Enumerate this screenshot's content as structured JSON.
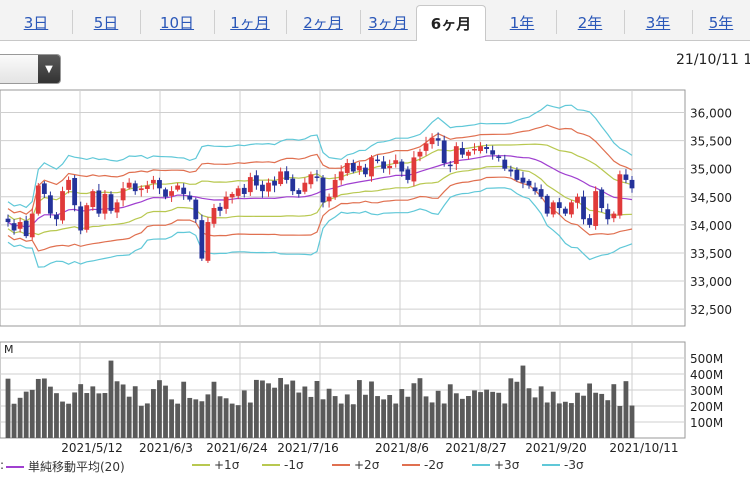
{
  "tabs": [
    {
      "label": "3日"
    },
    {
      "label": "5日"
    },
    {
      "label": "10日"
    },
    {
      "label": "1ヶ月"
    },
    {
      "label": "2ヶ月"
    },
    {
      "label": "3ヶ月"
    },
    {
      "label": "6ヶ月",
      "active": true
    },
    {
      "label": "1年"
    },
    {
      "label": "2年"
    },
    {
      "label": "3年"
    },
    {
      "label": "5年"
    }
  ],
  "header": {
    "date_label": "21/10/11 1"
  },
  "legend": {
    "prefix": ":",
    "items": [
      {
        "label": "単純移動平均(20)",
        "color": "#a040d0"
      },
      {
        "label": "+1σ",
        "color": "#b8c850"
      },
      {
        "label": "-1σ",
        "color": "#b8c850"
      },
      {
        "label": "+2σ",
        "color": "#e07050"
      },
      {
        "label": "-2σ",
        "color": "#e07050"
      },
      {
        "label": "+3σ",
        "color": "#60c8d8"
      },
      {
        "label": "-3σ",
        "color": "#60c8d8"
      }
    ]
  },
  "chart_data": {
    "type": "candlestick",
    "price_axis": {
      "ticks": [
        "36,000",
        "35,500",
        "35,000",
        "34,500",
        "34,000",
        "33,500",
        "33,000",
        "32,500"
      ],
      "range": [
        32200,
        36400
      ]
    },
    "volume_axis": {
      "unit_label": "M",
      "ticks": [
        "500M",
        "400M",
        "300M",
        "200M",
        "100M"
      ],
      "range": [
        0,
        600
      ]
    },
    "x_labels": [
      "2021/5/12",
      "2021/6/3",
      "2021/6/24",
      "2021/7/16",
      "2021/8/6",
      "2021/8/27",
      "2021/9/20",
      "2021/10/11"
    ],
    "colors": {
      "up": "#e03a3a",
      "down": "#24329a",
      "volume": "#5a5a5a"
    },
    "close": [
      34050,
      33900,
      34050,
      33800,
      34200,
      34700,
      34550,
      34200,
      34100,
      34600,
      34800,
      34350,
      33900,
      34350,
      34600,
      34200,
      34550,
      34250,
      34400,
      34650,
      34750,
      34600,
      34650,
      34700,
      34800,
      34650,
      34500,
      34600,
      34700,
      34550,
      34450,
      34100,
      33400,
      34050,
      34300,
      34250,
      34500,
      34550,
      34650,
      34550,
      34850,
      34700,
      34600,
      34750,
      34700,
      34950,
      34800,
      34600,
      34550,
      34750,
      34900,
      34850,
      34400,
      34500,
      34800,
      34950,
      35100,
      34950,
      35050,
      34900,
      35200,
      35150,
      35000,
      35050,
      35150,
      34950,
      34800,
      35200,
      35300,
      35450,
      35550,
      35500,
      35100,
      35050,
      35400,
      35250,
      35300,
      35350,
      35400,
      35350,
      35250,
      35200,
      35000,
      34950,
      34800,
      34750,
      34700,
      34600,
      34500,
      34200,
      34400,
      34300,
      34200,
      34400,
      34500,
      34100,
      34000,
      34600,
      34300,
      34100,
      34200,
      34900,
      34800,
      34650
    ]
  }
}
